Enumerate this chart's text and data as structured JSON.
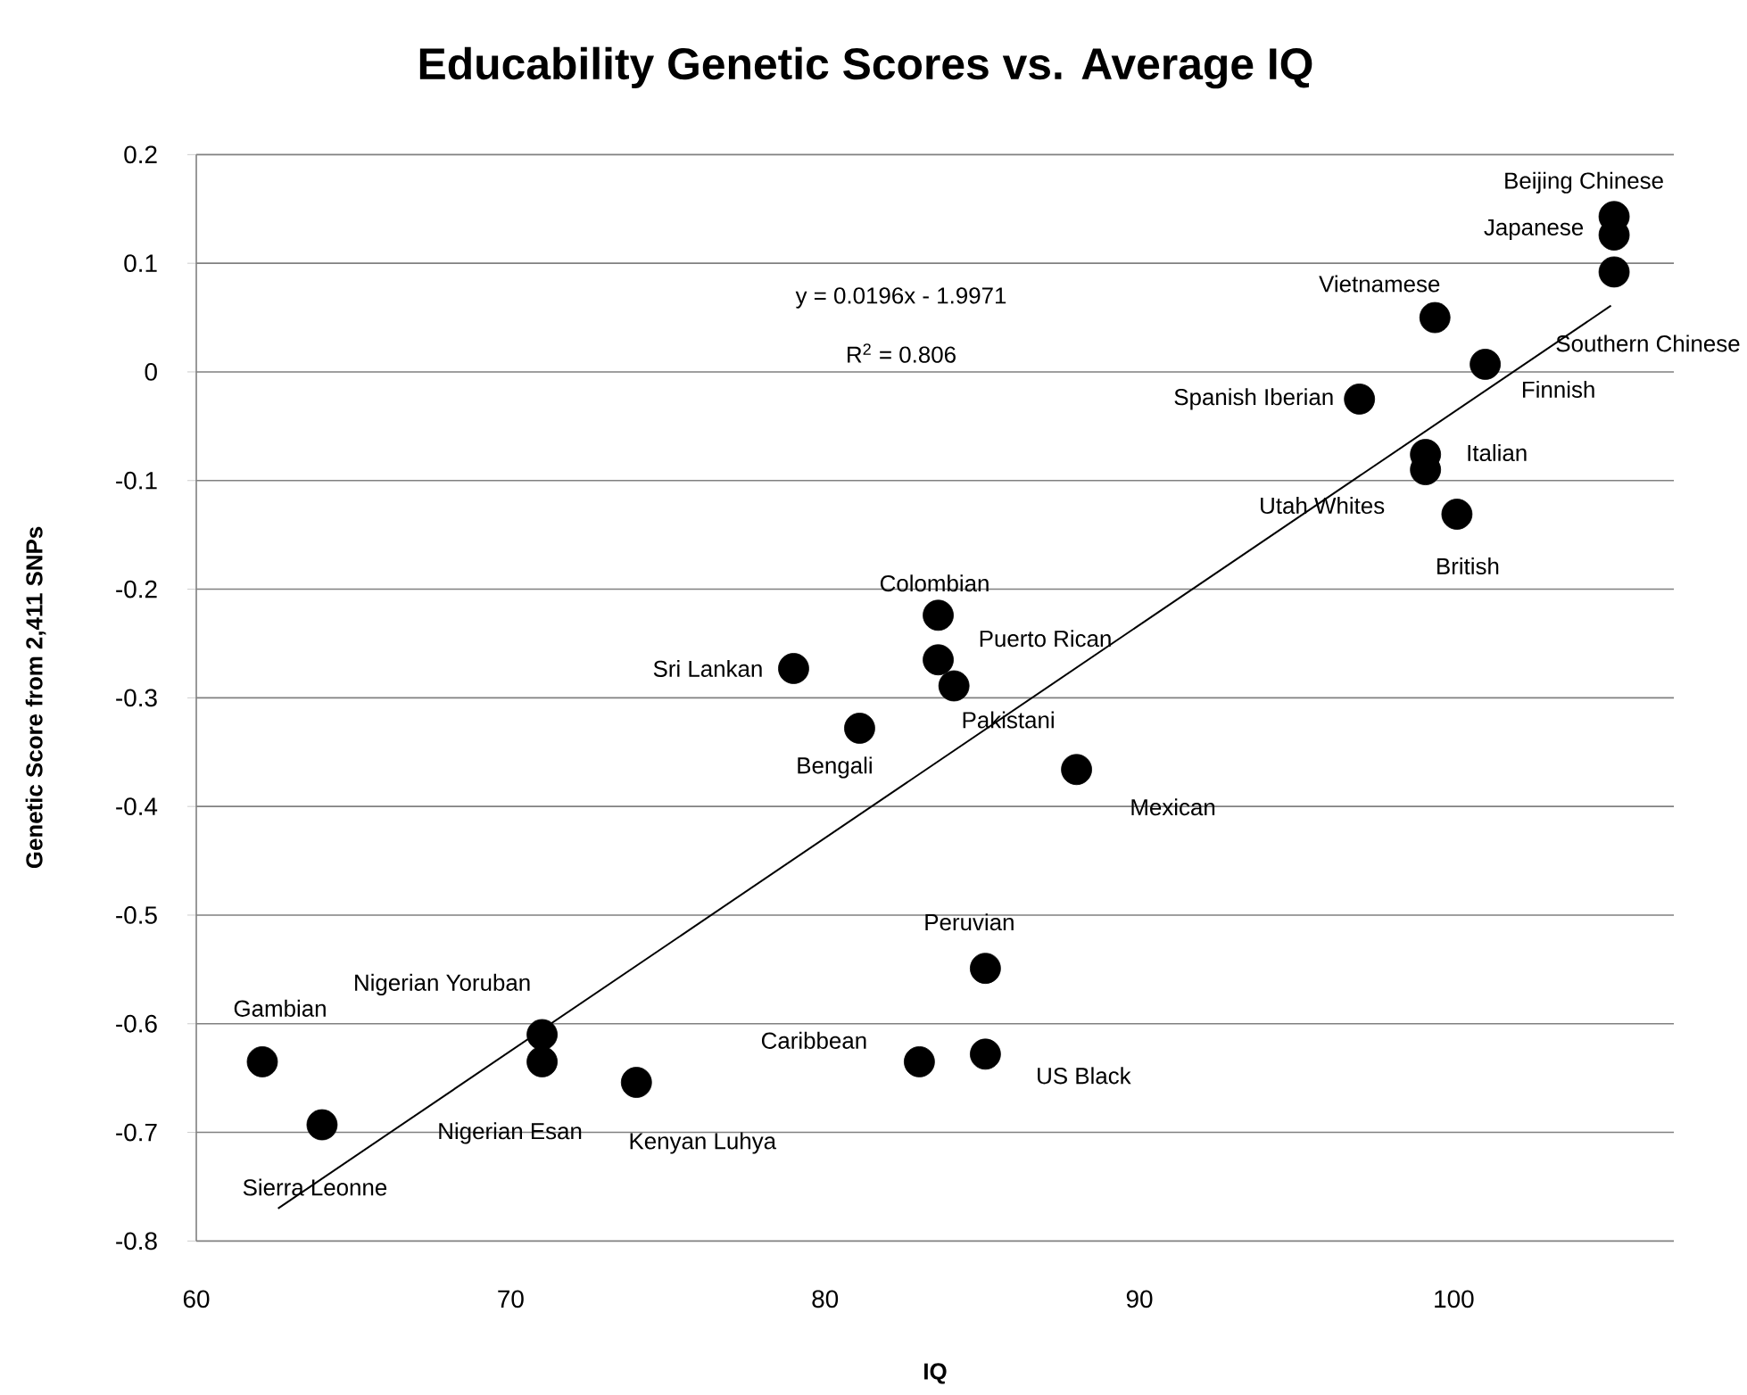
{
  "chart_data": {
    "type": "scatter",
    "title": "Educability Genetic Scores vs. Average IQ",
    "xlabel": "IQ",
    "ylabel": "Genetic Score from 2,411 SNPs",
    "xlim": [
      60,
      107
    ],
    "ylim": [
      -0.8,
      0.2
    ],
    "xticks": [
      60,
      70,
      80,
      90,
      100
    ],
    "yticks": [
      -0.8,
      -0.7,
      -0.6,
      -0.5,
      -0.4,
      -0.3,
      -0.2,
      -0.1,
      0,
      0.1,
      0.2
    ],
    "grid": "y",
    "marker": "circle",
    "series": [
      {
        "color": "#000000",
        "x": [
          105.1,
          105.1,
          105.1,
          99.4,
          101.0,
          97.0,
          99.1,
          99.1,
          100.1,
          83.6,
          83.6,
          84.1,
          88.0,
          79.0,
          81.1,
          71.0,
          71.0,
          74.0,
          62.1,
          64.0,
          83.0,
          85.1,
          85.1
        ],
        "values": [
          0.143,
          0.126,
          0.092,
          0.05,
          0.007,
          -0.025,
          -0.076,
          -0.09,
          -0.131,
          -0.224,
          -0.265,
          -0.289,
          -0.366,
          -0.273,
          -0.328,
          -0.61,
          -0.635,
          -0.654,
          -0.635,
          -0.693,
          -0.635,
          -0.549,
          -0.628
        ]
      },
      {
        "type": "line",
        "color": "#000000",
        "marker": "none",
        "x": [
          62.6,
          105
        ],
        "values": [
          -0.77,
          0.061
        ]
      }
    ],
    "annotations": [
      "y = 0.0196x - 1.9971",
      "R$^{2}$ = 0.806",
      {
        "text": "Beijing Chinese",
        "x": 105.1,
        "y": 0.143
      },
      {
        "text": "Japanese",
        "x": 105.1,
        "y": 0.126
      },
      {
        "text": "Southern Chinese",
        "x": 105.1,
        "y": 0.092
      },
      {
        "text": "Vietnamese",
        "x": 99.4,
        "y": 0.05
      },
      {
        "text": "Finnish",
        "x": 101.0,
        "y": 0.007
      },
      {
        "text": "Spanish Iberian",
        "x": 97.0,
        "y": -0.025
      },
      {
        "text": "Italian",
        "x": 99.1,
        "y": -0.076
      },
      {
        "text": "Utah Whites",
        "x": 99.1,
        "y": -0.09
      },
      {
        "text": "British",
        "x": 100.1,
        "y": -0.131
      },
      {
        "text": "Colombian",
        "x": 83.6,
        "y": -0.224
      },
      {
        "text": "Puerto Rican",
        "x": 83.6,
        "y": -0.265
      },
      {
        "text": "Pakistani",
        "x": 84.1,
        "y": -0.289
      },
      {
        "text": "Mexican",
        "x": 88.0,
        "y": -0.366
      },
      {
        "text": "Sri Lankan",
        "x": 79.0,
        "y": -0.273
      },
      {
        "text": "Bengali",
        "x": 81.1,
        "y": -0.328
      },
      {
        "text": "Nigerian Yoruban",
        "x": 71.0,
        "y": -0.61
      },
      {
        "text": "Nigerian Esan",
        "x": 71.0,
        "y": -0.635
      },
      {
        "text": "Kenyan Luhya",
        "x": 74.0,
        "y": -0.654
      },
      {
        "text": "Gambian",
        "x": 62.1,
        "y": -0.635
      },
      {
        "text": "Sierra Leonne",
        "x": 64.0,
        "y": -0.693
      },
      {
        "text": "Caribbean",
        "x": 83.0,
        "y": -0.635
      },
      {
        "text": "Peruvian",
        "x": 85.1,
        "y": -0.549
      },
      {
        "text": "US Black",
        "x": 85.1,
        "y": -0.628
      }
    ]
  }
}
